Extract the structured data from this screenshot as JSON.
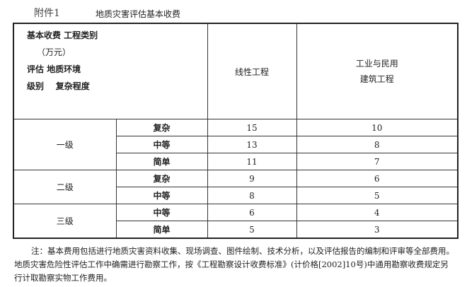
{
  "annex_label": "附件1",
  "title": "地质灾害评估基本收费",
  "table": {
    "corner": {
      "line1": "基本收费  工程类别",
      "line2": "（万元）",
      "line3": "评估  地质环境",
      "line4": "级别    复杂程度"
    },
    "columns": [
      "线性工程",
      "工业与民用",
      "建筑工程"
    ],
    "groups": [
      {
        "level": "一级",
        "rows": [
          {
            "complexity": "复杂",
            "linear": "15",
            "civil": "10"
          },
          {
            "complexity": "中等",
            "linear": "13",
            "civil": "8"
          },
          {
            "complexity": "简单",
            "linear": "11",
            "civil": "7"
          }
        ]
      },
      {
        "level": "二级",
        "rows": [
          {
            "complexity": "复杂",
            "linear": "9",
            "civil": "6"
          },
          {
            "complexity": "中等",
            "linear": "8",
            "civil": "5"
          }
        ]
      },
      {
        "level": "三级",
        "rows": [
          {
            "complexity": "中等",
            "linear": "6",
            "civil": "4"
          },
          {
            "complexity": "简单",
            "linear": "5",
            "civil": "3"
          }
        ]
      }
    ]
  },
  "note": "注：基本费用包括进行地质灾害资料收集、现场调查、图件绘制、技术分析，以及评估报告的编制和评审等全部费用。地质灾害危险性评估工作中确需进行勘察工作，按《工程勘察设计收费标准》(计价格[2002]10号)中通用勘察收费规定另行计取勘察实物工作费用。"
}
